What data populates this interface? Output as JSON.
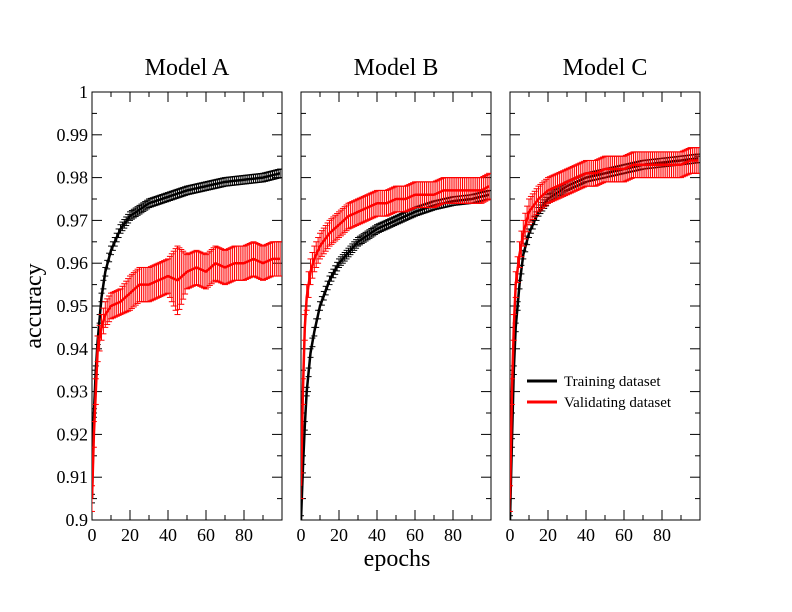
{
  "figure": {
    "xlabel": "epochs",
    "ylabel": "accuracy"
  },
  "legend": {
    "items": [
      {
        "label": "Training dataset",
        "color": "#000000"
      },
      {
        "label": "Validating dataset",
        "color": "#ff0000"
      }
    ],
    "placement": "lower-right of Model C panel"
  },
  "colors": {
    "training": "#000000",
    "validating": "#ff0000"
  },
  "y_ticks": [
    "0.9",
    "0.91",
    "0.92",
    "0.93",
    "0.94",
    "0.95",
    "0.96",
    "0.97",
    "0.98",
    "0.99",
    "1"
  ],
  "x_ticks": [
    "0",
    "20",
    "40",
    "60",
    "80"
  ],
  "chart_data": [
    {
      "type": "line",
      "title": "Model A",
      "xlim": [
        0,
        100
      ],
      "ylim": [
        0.9,
        1.0
      ],
      "grid": false,
      "series": [
        {
          "name": "Training dataset",
          "x": [
            0,
            1,
            2,
            3,
            5,
            7,
            10,
            15,
            20,
            30,
            40,
            50,
            60,
            70,
            80,
            90,
            99
          ],
          "y": [
            0.905,
            0.925,
            0.935,
            0.942,
            0.952,
            0.958,
            0.963,
            0.968,
            0.971,
            0.974,
            0.9755,
            0.977,
            0.978,
            0.979,
            0.9795,
            0.98,
            0.981
          ],
          "err": [
            0.001,
            0.001,
            0.001,
            0.001,
            0.001,
            0.001,
            0.001,
            0.001,
            0.001,
            0.001,
            0.001,
            0.001,
            0.001,
            0.001,
            0.001,
            0.001,
            0.001
          ]
        },
        {
          "name": "Validating dataset",
          "x": [
            0,
            1,
            2,
            3,
            5,
            7,
            10,
            15,
            20,
            25,
            30,
            35,
            40,
            45,
            50,
            55,
            60,
            65,
            70,
            75,
            80,
            85,
            90,
            95,
            99
          ],
          "y": [
            0.905,
            0.92,
            0.93,
            0.94,
            0.945,
            0.948,
            0.95,
            0.951,
            0.953,
            0.955,
            0.955,
            0.956,
            0.957,
            0.956,
            0.958,
            0.959,
            0.958,
            0.96,
            0.959,
            0.96,
            0.96,
            0.961,
            0.96,
            0.961,
            0.961
          ],
          "err": [
            0.003,
            0.003,
            0.003,
            0.003,
            0.003,
            0.003,
            0.003,
            0.003,
            0.004,
            0.004,
            0.004,
            0.004,
            0.004,
            0.008,
            0.004,
            0.004,
            0.004,
            0.004,
            0.004,
            0.004,
            0.004,
            0.004,
            0.004,
            0.004,
            0.004
          ]
        }
      ]
    },
    {
      "type": "line",
      "title": "Model B",
      "xlim": [
        0,
        100
      ],
      "ylim": [
        0.9,
        1.0
      ],
      "grid": false,
      "series": [
        {
          "name": "Training dataset",
          "x": [
            0,
            1,
            2,
            3,
            5,
            7,
            10,
            15,
            20,
            30,
            40,
            50,
            60,
            70,
            80,
            90,
            99
          ],
          "y": [
            0.9,
            0.912,
            0.922,
            0.93,
            0.939,
            0.944,
            0.95,
            0.956,
            0.96,
            0.965,
            0.968,
            0.97,
            0.972,
            0.9735,
            0.9745,
            0.975,
            0.976
          ],
          "err": [
            0.001,
            0.001,
            0.001,
            0.001,
            0.001,
            0.001,
            0.001,
            0.001,
            0.001,
            0.001,
            0.001,
            0.001,
            0.001,
            0.001,
            0.001,
            0.001,
            0.001
          ]
        },
        {
          "name": "Validating dataset",
          "x": [
            0,
            1,
            2,
            3,
            5,
            7,
            10,
            15,
            20,
            25,
            30,
            35,
            40,
            45,
            50,
            55,
            60,
            65,
            70,
            75,
            80,
            85,
            90,
            95,
            99
          ],
          "y": [
            0.908,
            0.93,
            0.945,
            0.952,
            0.958,
            0.961,
            0.964,
            0.967,
            0.969,
            0.971,
            0.972,
            0.973,
            0.974,
            0.974,
            0.975,
            0.975,
            0.976,
            0.976,
            0.976,
            0.977,
            0.977,
            0.977,
            0.977,
            0.977,
            0.978
          ],
          "err": [
            0.003,
            0.003,
            0.003,
            0.003,
            0.003,
            0.003,
            0.003,
            0.003,
            0.003,
            0.003,
            0.003,
            0.003,
            0.003,
            0.003,
            0.003,
            0.003,
            0.003,
            0.003,
            0.003,
            0.003,
            0.003,
            0.003,
            0.003,
            0.003,
            0.003
          ]
        }
      ]
    },
    {
      "type": "line",
      "title": "Model C",
      "xlim": [
        0,
        100
      ],
      "ylim": [
        0.9,
        1.0
      ],
      "grid": false,
      "series": [
        {
          "name": "Training dataset",
          "x": [
            0,
            1,
            2,
            3,
            5,
            7,
            10,
            15,
            20,
            30,
            40,
            50,
            60,
            70,
            80,
            90,
            99
          ],
          "y": [
            0.9,
            0.918,
            0.935,
            0.945,
            0.955,
            0.962,
            0.967,
            0.972,
            0.975,
            0.978,
            0.98,
            0.981,
            0.982,
            0.983,
            0.9835,
            0.984,
            0.9845
          ],
          "err": [
            0.001,
            0.001,
            0.001,
            0.001,
            0.001,
            0.001,
            0.001,
            0.001,
            0.001,
            0.001,
            0.001,
            0.001,
            0.001,
            0.001,
            0.001,
            0.001,
            0.001
          ]
        },
        {
          "name": "Validating dataset",
          "x": [
            0,
            1,
            2,
            3,
            5,
            7,
            10,
            15,
            20,
            25,
            30,
            35,
            40,
            45,
            50,
            55,
            60,
            65,
            70,
            75,
            80,
            85,
            90,
            95,
            99
          ],
          "y": [
            0.905,
            0.93,
            0.945,
            0.955,
            0.962,
            0.967,
            0.972,
            0.975,
            0.977,
            0.978,
            0.979,
            0.98,
            0.981,
            0.981,
            0.982,
            0.982,
            0.982,
            0.983,
            0.983,
            0.983,
            0.983,
            0.983,
            0.983,
            0.984,
            0.984
          ],
          "err": [
            0.003,
            0.003,
            0.003,
            0.003,
            0.003,
            0.003,
            0.003,
            0.003,
            0.003,
            0.003,
            0.003,
            0.003,
            0.003,
            0.003,
            0.003,
            0.003,
            0.003,
            0.003,
            0.003,
            0.003,
            0.003,
            0.003,
            0.003,
            0.003,
            0.003
          ]
        }
      ]
    }
  ]
}
